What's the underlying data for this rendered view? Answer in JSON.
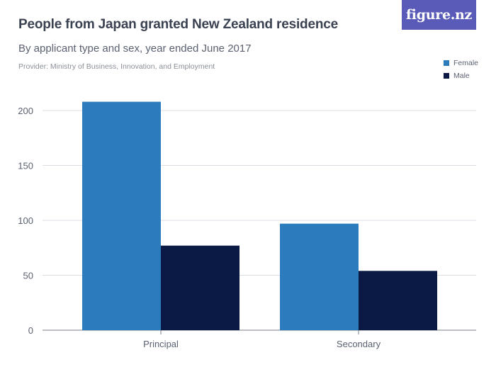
{
  "chart": {
    "title": "People from Japan granted New Zealand residence",
    "subtitle": "By applicant type and sex, year ended June 2017",
    "provider": "Provider: Ministry of Business, Innovation, and Employment",
    "logo": "figure.nz"
  },
  "legend": {
    "female": "Female",
    "male": "Male"
  },
  "colors": {
    "female": "#2c7bbd",
    "male": "#0b1a45",
    "grid": "#d9dde3",
    "axis": "#7a808a"
  },
  "chart_data": {
    "type": "bar",
    "title": "People from Japan granted New Zealand residence",
    "xlabel": "",
    "ylabel": "",
    "categories": [
      "Principal",
      "Secondary"
    ],
    "series": [
      {
        "name": "Female",
        "values": [
          208,
          97
        ]
      },
      {
        "name": "Male",
        "values": [
          77,
          54
        ]
      }
    ],
    "ylim": [
      0,
      200
    ],
    "yticks": [
      0,
      50,
      100,
      150,
      200
    ],
    "legend_position": "top-right",
    "grid": true
  }
}
